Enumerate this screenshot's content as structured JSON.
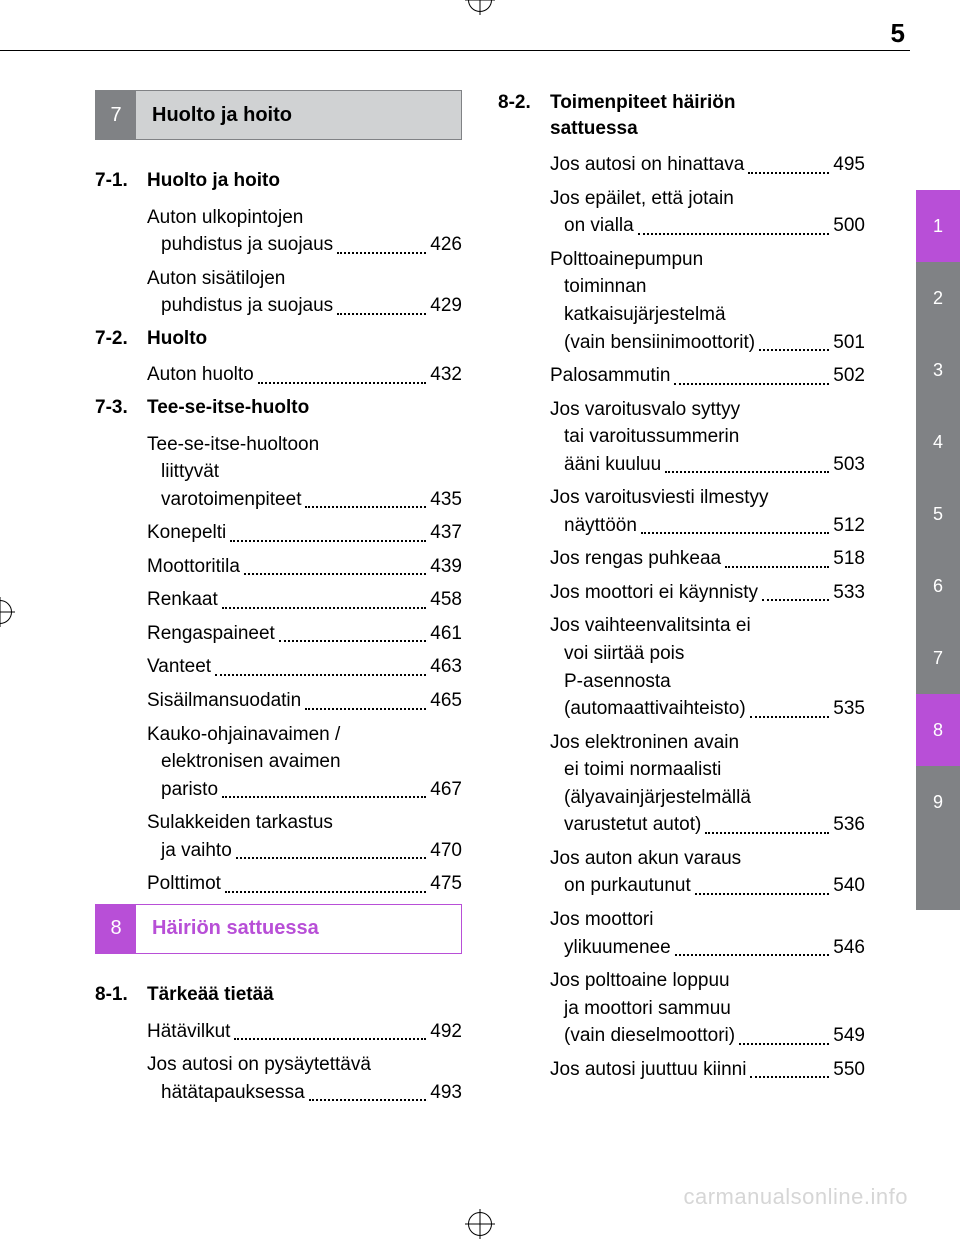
{
  "page_number": "5",
  "watermark": "carmanualsonline.info",
  "side_tabs": [
    {
      "label": "1",
      "style": "purple"
    },
    {
      "label": "2",
      "style": "gray"
    },
    {
      "label": "3",
      "style": "gray"
    },
    {
      "label": "4",
      "style": "gray"
    },
    {
      "label": "5",
      "style": "gray"
    },
    {
      "label": "6",
      "style": "gray"
    },
    {
      "label": "7",
      "style": "gray"
    },
    {
      "label": "8",
      "style": "purple"
    },
    {
      "label": "9",
      "style": "gray"
    },
    {
      "label": "",
      "style": "blank"
    }
  ],
  "sections": {
    "s7": {
      "num": "7",
      "title": "Huolto ja hoito",
      "style": "gray"
    },
    "s8": {
      "num": "8",
      "title": "Häiriön sattuessa",
      "style": "purple"
    }
  },
  "col_left": [
    {
      "type": "header",
      "ref": "s7"
    },
    {
      "type": "sub",
      "num": "7-1.",
      "title": "Huolto ja hoito"
    },
    {
      "type": "entry",
      "lines": [
        "Auton ulkopintojen",
        "puhdistus ja suojaus"
      ],
      "page": "426"
    },
    {
      "type": "entry",
      "lines": [
        "Auton sisätilojen",
        "puhdistus ja suojaus"
      ],
      "page": "429"
    },
    {
      "type": "sub",
      "num": "7-2.",
      "title": "Huolto"
    },
    {
      "type": "entry",
      "lines": [
        "Auton huolto"
      ],
      "page": "432"
    },
    {
      "type": "sub",
      "num": "7-3.",
      "title": "Tee-se-itse-huolto"
    },
    {
      "type": "entry",
      "lines": [
        "Tee-se-itse-huoltoon",
        "liittyvät",
        "varotoimenpiteet"
      ],
      "page": "435"
    },
    {
      "type": "entry",
      "lines": [
        "Konepelti"
      ],
      "page": "437"
    },
    {
      "type": "entry",
      "lines": [
        "Moottoritila"
      ],
      "page": "439"
    },
    {
      "type": "entry",
      "lines": [
        "Renkaat"
      ],
      "page": "458"
    },
    {
      "type": "entry",
      "lines": [
        "Rengaspaineet"
      ],
      "page": "461"
    },
    {
      "type": "entry",
      "lines": [
        "Vanteet"
      ],
      "page": "463"
    },
    {
      "type": "entry",
      "lines": [
        "Sisäilmansuodatin"
      ],
      "page": "465"
    },
    {
      "type": "entry",
      "lines": [
        "Kauko-ohjainavaimen /",
        "elektronisen avaimen",
        "paristo"
      ],
      "page": "467"
    },
    {
      "type": "entry",
      "lines": [
        "Sulakkeiden tarkastus",
        "ja vaihto"
      ],
      "page": "470"
    },
    {
      "type": "entry",
      "lines": [
        "Polttimot"
      ],
      "page": "475"
    },
    {
      "type": "header",
      "ref": "s8"
    },
    {
      "type": "sub",
      "num": "8-1.",
      "title": "Tärkeää tietää"
    },
    {
      "type": "entry",
      "lines": [
        "Hätävilkut"
      ],
      "page": "492"
    },
    {
      "type": "entry",
      "lines": [
        "Jos autosi on pysäytettävä",
        "hätätapauksessa"
      ],
      "page": "493"
    }
  ],
  "col_right": [
    {
      "type": "sub",
      "num": "8-2.",
      "title_lines": [
        "Toimenpiteet häiriön",
        "sattuessa"
      ]
    },
    {
      "type": "entry",
      "lines": [
        "Jos autosi on hinattava"
      ],
      "page": "495"
    },
    {
      "type": "entry",
      "lines": [
        "Jos epäilet, että jotain",
        "on vialla"
      ],
      "page": "500"
    },
    {
      "type": "entry",
      "lines": [
        "Polttoainepumpun",
        "toiminnan",
        "katkaisujärjestelmä",
        "(vain bensiinimoottorit)"
      ],
      "page": "501"
    },
    {
      "type": "entry",
      "lines": [
        "Palosammutin"
      ],
      "page": "502"
    },
    {
      "type": "entry",
      "lines": [
        "Jos varoitusvalo syttyy",
        "tai varoitussummerin",
        "ääni kuuluu"
      ],
      "page": "503"
    },
    {
      "type": "entry",
      "lines": [
        "Jos varoitusviesti ilmestyy",
        "näyttöön"
      ],
      "page": "512"
    },
    {
      "type": "entry",
      "lines": [
        "Jos rengas puhkeaa"
      ],
      "page": "518"
    },
    {
      "type": "entry",
      "lines": [
        "Jos moottori ei käynnisty"
      ],
      "page": "533"
    },
    {
      "type": "entry",
      "lines": [
        "Jos vaihteenvalitsinta ei",
        "voi siirtää pois",
        "P-asennosta",
        "(automaattivaihteisto)"
      ],
      "page": "535"
    },
    {
      "type": "entry",
      "lines": [
        "Jos elektroninen avain",
        "ei toimi normaalisti",
        "(älyavainjärjestelmällä",
        "varustetut autot)"
      ],
      "page": "536"
    },
    {
      "type": "entry",
      "lines": [
        "Jos auton akun varaus",
        "on purkautunut"
      ],
      "page": "540"
    },
    {
      "type": "entry",
      "lines": [
        "Jos moottori",
        "ylikuumenee"
      ],
      "page": "546"
    },
    {
      "type": "entry",
      "lines": [
        "Jos polttoaine loppuu",
        "ja moottori sammuu",
        "(vain dieselmoottori)"
      ],
      "page": "549"
    },
    {
      "type": "entry",
      "lines": [
        "Jos autosi juuttuu kiinni"
      ],
      "page": "550"
    }
  ]
}
